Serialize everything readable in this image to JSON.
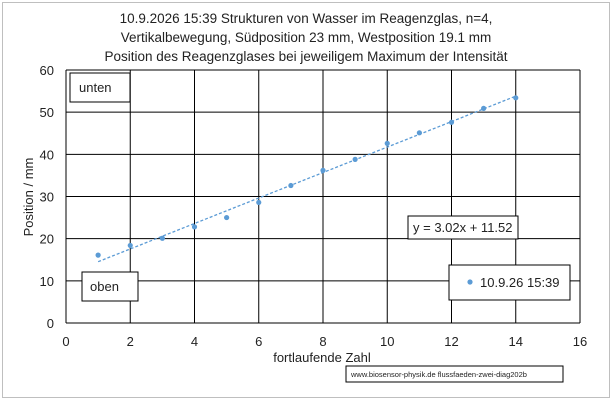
{
  "chart_data": {
    "type": "scatter",
    "title_lines": [
      "10.9.2026 15:39  Strukturen von Wasser im Reagenzglas, n=4,",
      "Vertikalbewegung, Südposition 23 mm, Westposition 19.1 mm",
      "Position des Reagenzglases bei jeweiligem Maximum der Intensität"
    ],
    "xlabel": "fortlaufende Zahl",
    "ylabel": "Position / mm",
    "xlim": [
      0,
      16
    ],
    "ylim": [
      0,
      60
    ],
    "x_ticks": [
      "0",
      "2",
      "4",
      "6",
      "8",
      "10",
      "12",
      "14",
      "16"
    ],
    "y_ticks": [
      "0",
      "10",
      "20",
      "30",
      "40",
      "50",
      "60"
    ],
    "grid": true,
    "marker_color": "#5b9bd5",
    "trendline_color": "#5b9bd5",
    "series": [
      {
        "name": "10.9.26 15:39",
        "x": [
          1,
          2,
          3,
          4,
          5,
          6,
          7,
          8,
          9,
          10,
          11,
          12,
          13,
          14
        ],
        "y": [
          16.1,
          18.4,
          20.1,
          22.8,
          25.0,
          28.6,
          32.6,
          36.2,
          38.8,
          42.6,
          45.1,
          47.6,
          50.9,
          53.4
        ]
      }
    ],
    "trendline": {
      "slope": 3.02,
      "intercept": 11.52,
      "x_range": [
        1,
        14
      ],
      "label": "y = 3.02x + 11.52"
    },
    "annotations": {
      "top": "unten",
      "bottom": "oben"
    },
    "legend_position": "bottom-right",
    "credit": "www.biosensor-physik.de  flussfaeden-zwei-diag202b"
  }
}
